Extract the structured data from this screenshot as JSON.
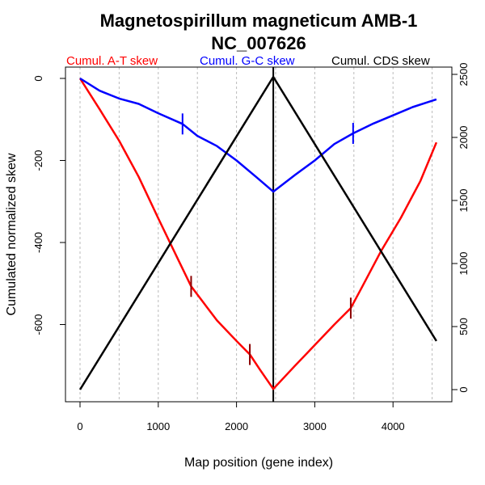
{
  "chart_data": {
    "type": "line",
    "title": "Magnetospirillum magneticum AMB-1",
    "subtitle": "NC_007626",
    "xlabel": "Map position (gene index)",
    "ylabel": "Cumulated normalized skew",
    "xlim": [
      0,
      4555
    ],
    "ylim": [
      -760,
      0
    ],
    "y2lim": [
      0,
      2500
    ],
    "x_ticks": [
      0,
      1000,
      2000,
      3000,
      4000
    ],
    "y_ticks": [
      0,
      -200,
      -400,
      -600
    ],
    "y2_ticks": [
      0,
      500,
      1000,
      1500,
      2000,
      2500
    ],
    "grid": "vertical dashed every 500",
    "vertical_marker": 2470,
    "legend": [
      {
        "label": "Cumul. A-T skew",
        "color": "#ff0000"
      },
      {
        "label": "Cumul. G-C skew",
        "color": "#0000ff"
      },
      {
        "label": "Cumul. CDS skew",
        "color": "#000000"
      }
    ],
    "legend_placement": "top",
    "series": [
      {
        "name": "Cumul. A-T skew",
        "axis": "left",
        "color": "#ff0000",
        "x": [
          0,
          250,
          500,
          750,
          1000,
          1250,
          1420,
          1750,
          2000,
          2170,
          2300,
          2470,
          2750,
          3000,
          3250,
          3460,
          3600,
          3850,
          4100,
          4350,
          4555
        ],
        "y": [
          0,
          -75,
          -152,
          -240,
          -341,
          -440,
          -507,
          -590,
          -640,
          -673,
          -710,
          -757,
          -700,
          -650,
          -600,
          -560,
          -510,
          -420,
          -340,
          -250,
          -156
        ]
      },
      {
        "name": "Cumul. G-C skew",
        "axis": "left",
        "color": "#0000ff",
        "x": [
          0,
          250,
          500,
          750,
          1000,
          1310,
          1500,
          1750,
          2000,
          2250,
          2470,
          2750,
          3000,
          3250,
          3490,
          3750,
          4000,
          4250,
          4555
        ],
        "y": [
          0,
          -30,
          -49,
          -62,
          -85,
          -111,
          -140,
          -165,
          -200,
          -240,
          -276,
          -235,
          -200,
          -160,
          -134,
          -110,
          -90,
          -70,
          -51
        ]
      },
      {
        "name": "Cumul. CDS skew",
        "axis": "right",
        "color": "#000000",
        "x": [
          0,
          2470,
          4555
        ],
        "y": [
          0,
          2480,
          385
        ]
      }
    ],
    "markers": [
      {
        "series": "Cumul. G-C skew",
        "x": 1310,
        "y": -111,
        "color": "#0000ff"
      },
      {
        "series": "Cumul. G-C skew",
        "x": 3490,
        "y": -134,
        "color": "#0000ff"
      },
      {
        "series": "Cumul. A-T skew",
        "x": 1420,
        "y": -507,
        "color": "#8b0000"
      },
      {
        "series": "Cumul. A-T skew",
        "x": 2170,
        "y": -673,
        "color": "#8b0000"
      },
      {
        "series": "Cumul. A-T skew",
        "x": 3460,
        "y": -560,
        "color": "#8b0000"
      }
    ]
  }
}
